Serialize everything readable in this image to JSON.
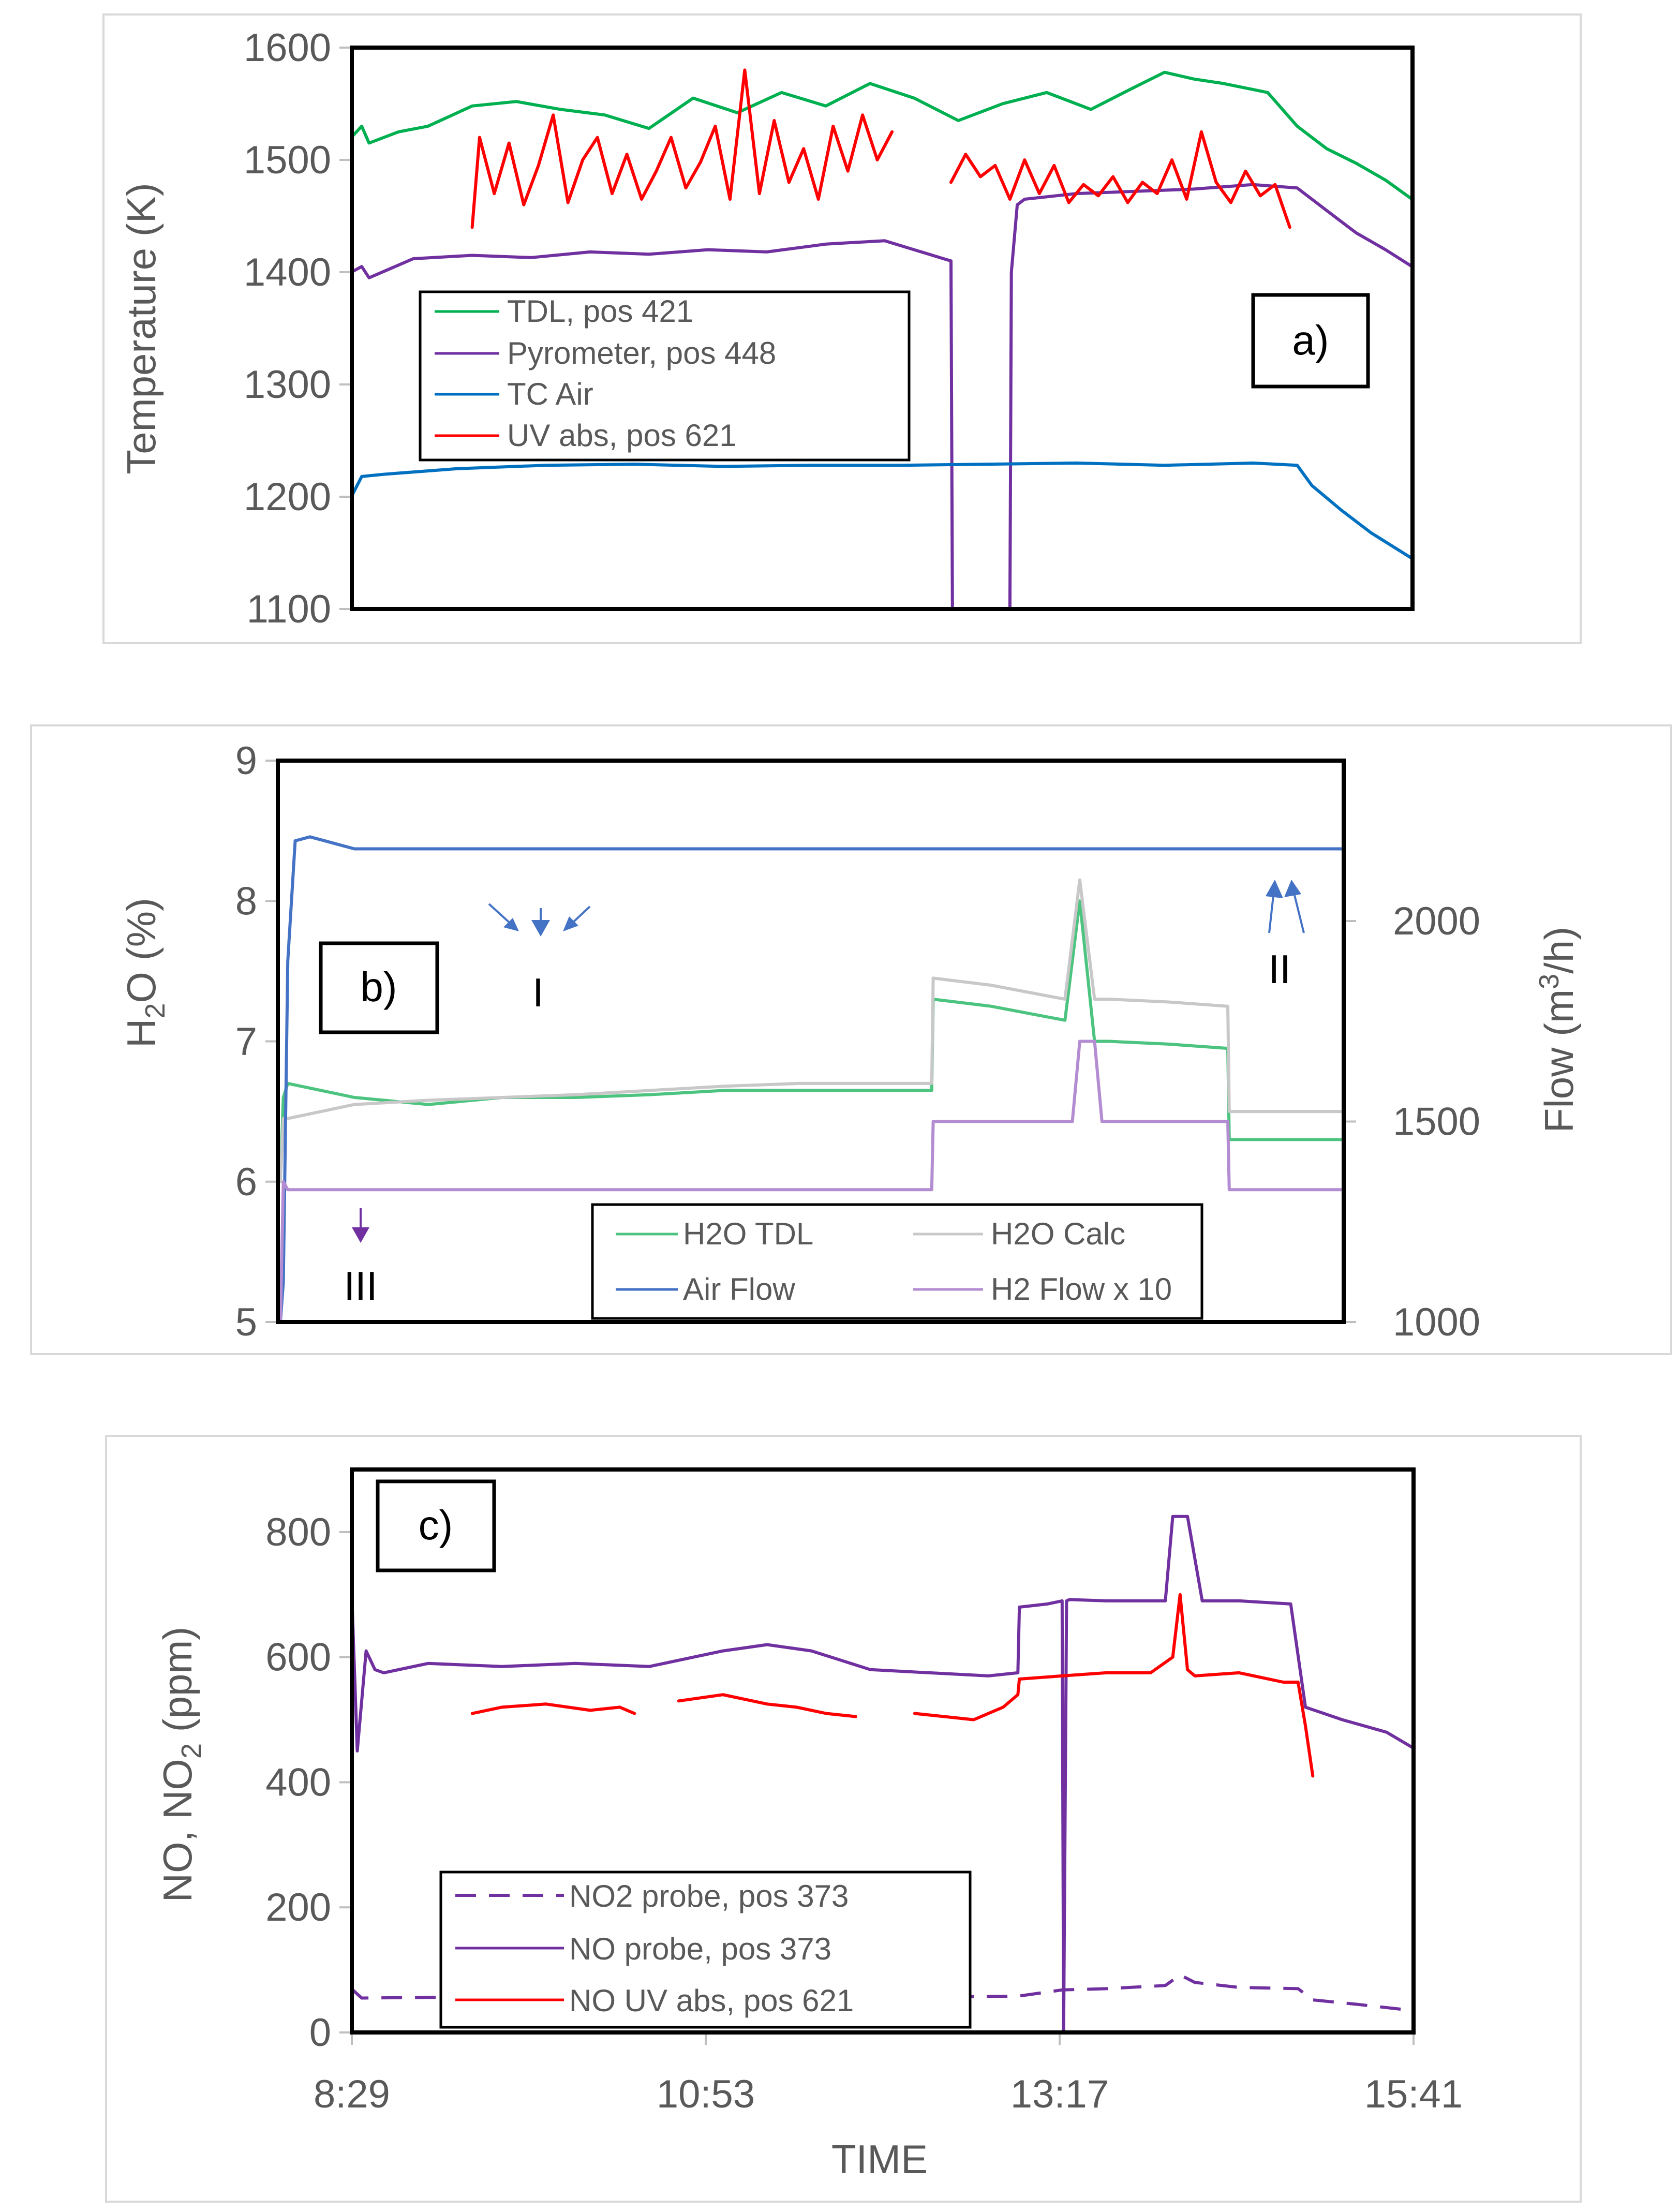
{
  "chart_data": [
    {
      "id": "a",
      "type": "line",
      "panel_label": "a)",
      "ylabel": "Temperature (K)",
      "ylim": [
        1100,
        1600
      ],
      "yticks": [
        "1600",
        "1500",
        "1400",
        "1300",
        "1200",
        "1100"
      ],
      "yticks_values": [
        1600,
        1500,
        1400,
        1300,
        1200,
        1100
      ],
      "x_range_hours": [
        8.483,
        15.683
      ],
      "legend": [
        "TDL, pos 421",
        "Pyrometer, pos 448",
        "TC Air",
        "UV abs, pos 621"
      ],
      "series": [
        {
          "name": "TDL, pos 421",
          "color": "#00b050",
          "x": [
            8.48,
            8.55,
            8.6,
            8.8,
            9.0,
            9.3,
            9.6,
            9.9,
            10.2,
            10.5,
            10.8,
            11.1,
            11.4,
            11.7,
            12.0,
            12.3,
            12.6,
            12.9,
            13.2,
            13.5,
            13.8,
            14.0,
            14.2,
            14.4,
            14.7,
            14.9,
            15.1,
            15.3,
            15.5,
            15.68
          ],
          "y": [
            1520,
            1530,
            1515,
            1525,
            1530,
            1548,
            1552,
            1545,
            1540,
            1528,
            1555,
            1542,
            1560,
            1548,
            1568,
            1555,
            1535,
            1550,
            1560,
            1545,
            1565,
            1578,
            1572,
            1568,
            1560,
            1530,
            1510,
            1497,
            1482,
            1465
          ]
        },
        {
          "name": "Pyrometer, pos 448",
          "color": "#7030a0",
          "x": [
            8.48,
            8.55,
            8.6,
            8.9,
            9.3,
            9.7,
            10.1,
            10.5,
            10.9,
            11.3,
            11.7,
            12.1,
            12.5,
            12.55,
            12.56,
            12.95,
            12.96,
            13.0,
            13.05,
            13.4,
            13.8,
            14.2,
            14.6,
            14.9,
            15.1,
            15.3,
            15.5,
            15.68
          ],
          "y": [
            1400,
            1405,
            1395,
            1412,
            1415,
            1413,
            1418,
            1416,
            1420,
            1418,
            1425,
            1428,
            1412,
            1410,
            1100,
            1100,
            1400,
            1460,
            1465,
            1470,
            1472,
            1474,
            1478,
            1475,
            1455,
            1435,
            1420,
            1405
          ]
        },
        {
          "name": "TC Air",
          "color": "#0070c0",
          "x": [
            8.48,
            8.55,
            8.7,
            9.2,
            9.8,
            10.4,
            11.0,
            11.6,
            12.2,
            12.8,
            13.4,
            14.0,
            14.6,
            14.9,
            15.0,
            15.2,
            15.4,
            15.68
          ],
          "y": [
            1200,
            1218,
            1220,
            1225,
            1228,
            1229,
            1227,
            1228,
            1228,
            1229,
            1230,
            1228,
            1230,
            1228,
            1210,
            1188,
            1168,
            1145
          ]
        },
        {
          "name": "UV abs, pos 621",
          "color": "#ff0000",
          "x": [
            9.3,
            9.35,
            9.45,
            9.55,
            9.65,
            9.75,
            9.85,
            9.95,
            10.05,
            10.15,
            10.25,
            10.35,
            10.45,
            10.55,
            10.65,
            10.75,
            10.85,
            10.95,
            11.05,
            11.15,
            11.25,
            11.35,
            11.45,
            11.55,
            11.65,
            11.75,
            11.85,
            11.95,
            12.05,
            12.15,
            12.25,
            12.35,
            12.45,
            12.55,
            12.65,
            12.75,
            12.85,
            12.95,
            13.05,
            13.15,
            13.25,
            13.35,
            13.45,
            13.55,
            13.65,
            13.75,
            13.85,
            13.95,
            14.05,
            14.15,
            14.25,
            14.35,
            14.45,
            14.55,
            14.65,
            14.75,
            14.85
          ],
          "y": [
            1440,
            1520,
            1470,
            1515,
            1460,
            1495,
            1540,
            1462,
            1500,
            1520,
            1470,
            1505,
            1465,
            1490,
            1520,
            1475,
            1498,
            1530,
            1465,
            1580,
            1470,
            1535,
            1480,
            1510,
            1465,
            1530,
            1490,
            1540,
            1500,
            1525,
            null,
            null,
            null,
            1480,
            1505,
            1485,
            1495,
            1465,
            1500,
            1470,
            1495,
            1462,
            1478,
            1468,
            1485,
            1462,
            1480,
            1470,
            1500,
            1465,
            1525,
            1480,
            1462,
            1490,
            1468,
            1478,
            1440
          ]
        }
      ]
    },
    {
      "id": "b",
      "type": "line",
      "panel_label": "b)",
      "ylabel": "H2O (%)",
      "ylabel_main": "H",
      "ylabel_sub": "2",
      "ylabel_tail": "O (%)",
      "ylim": [
        5,
        9
      ],
      "yticks": [
        "9",
        "8",
        "7",
        "6",
        "5"
      ],
      "yticks_values": [
        9,
        8,
        7,
        6,
        5
      ],
      "y2label": "Flow (m3/h)",
      "y2label_main": "Flow (m",
      "y2label_sup": "3",
      "y2label_tail": "/h)",
      "y2lim": [
        1000,
        2400
      ],
      "y2ticks": [
        "2000",
        "1500",
        "1000"
      ],
      "y2ticks_values": [
        2000,
        1500,
        1000
      ],
      "x_range_hours": [
        8.483,
        15.683
      ],
      "annotations": [
        "I",
        "II",
        "III"
      ],
      "legend": [
        "H2O TDL",
        "H2O Calc",
        "Air Flow",
        "H2 Flow x 10"
      ],
      "series": [
        {
          "name": "H2O TDL",
          "axis": "left",
          "color": "#4cc47f",
          "x": [
            8.5,
            8.52,
            8.55,
            9.0,
            9.5,
            10.0,
            10.5,
            11.0,
            11.5,
            12.0,
            12.5,
            12.9,
            12.91,
            13.3,
            13.8,
            13.9,
            14.0,
            14.1,
            14.5,
            14.9,
            14.91,
            15.3,
            15.68
          ],
          "y": [
            6.0,
            6.6,
            6.7,
            6.6,
            6.55,
            6.6,
            6.6,
            6.62,
            6.65,
            6.65,
            6.65,
            6.65,
            7.3,
            7.25,
            7.15,
            8.0,
            7.0,
            7.0,
            6.98,
            6.95,
            6.3,
            6.3,
            6.3
          ]
        },
        {
          "name": "H2O Calc",
          "axis": "left",
          "color": "#c8c8c8",
          "x": [
            8.5,
            8.52,
            8.55,
            9.0,
            9.5,
            10.0,
            10.5,
            11.0,
            11.5,
            12.0,
            12.5,
            12.9,
            12.91,
            13.3,
            13.8,
            13.9,
            14.0,
            14.1,
            14.5,
            14.9,
            14.91,
            15.3,
            15.68
          ],
          "y": [
            6.0,
            6.45,
            6.45,
            6.55,
            6.58,
            6.6,
            6.62,
            6.65,
            6.68,
            6.7,
            6.7,
            6.7,
            7.45,
            7.4,
            7.3,
            8.15,
            7.3,
            7.3,
            7.28,
            7.25,
            6.5,
            6.5,
            6.5
          ]
        },
        {
          "name": "Air Flow",
          "axis": "right",
          "color": "#4472c4",
          "x": [
            8.5,
            8.52,
            8.55,
            8.6,
            8.7,
            9.0,
            9.5,
            10.0,
            10.5,
            11.0,
            11.5,
            12.0,
            12.5,
            13.0,
            13.5,
            14.0,
            14.5,
            15.0,
            15.5,
            15.68
          ],
          "y": [
            1000,
            1100,
            1900,
            2200,
            2210,
            2180,
            2180,
            2180,
            2180,
            2180,
            2180,
            2180,
            2180,
            2180,
            2180,
            2180,
            2180,
            2180,
            2180,
            2180
          ]
        },
        {
          "name": "H2 Flow x 10",
          "axis": "right",
          "color": "#b48cd2",
          "x": [
            8.5,
            8.52,
            8.55,
            9.0,
            10.0,
            11.0,
            12.0,
            12.9,
            12.91,
            13.5,
            13.85,
            13.9,
            14.0,
            14.05,
            14.5,
            14.9,
            14.91,
            15.3,
            15.68
          ],
          "y": [
            1000,
            1350,
            1330,
            1330,
            1330,
            1330,
            1330,
            1330,
            1500,
            1500,
            1500,
            1700,
            1700,
            1500,
            1500,
            1500,
            1330,
            1330,
            1330
          ]
        }
      ]
    },
    {
      "id": "c",
      "type": "line",
      "panel_label": "c)",
      "ylabel": "NO, NO2 (ppm)",
      "ylabel_main": "NO, NO",
      "ylabel_sub": "2",
      "ylabel_tail": " (ppm)",
      "xlabel": "TIME",
      "ylim": [
        0,
        900
      ],
      "yticks": [
        "800",
        "600",
        "400",
        "200",
        "0"
      ],
      "yticks_values": [
        800,
        600,
        400,
        200,
        0
      ],
      "xticks": [
        "8:29",
        "10:53",
        "13:17",
        "15:41"
      ],
      "xticks_hours": [
        8.483,
        10.883,
        13.283,
        15.683
      ],
      "x_range_hours": [
        8.483,
        15.683
      ],
      "legend": [
        "NO2 probe, pos 373",
        "NO probe, pos 373",
        "NO UV abs, pos 621"
      ],
      "series": [
        {
          "name": "NO2 probe, pos 373",
          "color": "#7030a0",
          "dashed": true,
          "x": [
            8.48,
            8.55,
            9.0,
            9.5,
            10.0,
            10.5,
            11.0,
            11.5,
            12.0,
            12.5,
            13.0,
            13.3,
            13.6,
            14.0,
            14.1,
            14.2,
            14.5,
            14.9,
            15.0,
            15.3,
            15.68
          ],
          "y": [
            70,
            55,
            56,
            57,
            56,
            57,
            58,
            60,
            58,
            57,
            58,
            68,
            70,
            75,
            92,
            80,
            72,
            70,
            52,
            45,
            35
          ]
        },
        {
          "name": "NO probe, pos 373",
          "color": "#7030a0",
          "x": [
            8.48,
            8.52,
            8.58,
            8.64,
            8.7,
            9.0,
            9.5,
            10.0,
            10.5,
            11.0,
            11.3,
            11.6,
            11.8,
            12.0,
            12.4,
            12.8,
            13.0,
            13.01,
            13.2,
            13.3,
            13.31,
            13.33,
            13.35,
            13.6,
            14.0,
            14.05,
            14.15,
            14.25,
            14.5,
            14.85,
            14.95,
            15.2,
            15.5,
            15.68
          ],
          "y": [
            720,
            450,
            610,
            580,
            575,
            590,
            585,
            590,
            585,
            610,
            620,
            610,
            595,
            580,
            575,
            570,
            575,
            680,
            685,
            690,
            0,
            690,
            692,
            690,
            690,
            825,
            825,
            690,
            690,
            685,
            520,
            500,
            480,
            455
          ]
        },
        {
          "name": "NO UV abs, pos 621",
          "color": "#ff0000",
          "x": [
            9.3,
            9.5,
            9.8,
            10.1,
            10.3,
            10.4,
            10.5,
            10.7,
            11.0,
            11.3,
            11.5,
            11.7,
            11.9,
            12.0,
            12.2,
            12.3,
            12.5,
            12.7,
            12.9,
            13.0,
            13.01,
            13.3,
            13.6,
            13.9,
            14.05,
            14.1,
            14.15,
            14.2,
            14.5,
            14.8,
            14.9,
            14.95,
            15.0
          ],
          "y": [
            510,
            520,
            525,
            515,
            520,
            510,
            null,
            530,
            540,
            525,
            520,
            510,
            505,
            null,
            null,
            510,
            505,
            500,
            520,
            540,
            565,
            570,
            575,
            575,
            600,
            700,
            580,
            570,
            575,
            560,
            560,
            490,
            410
          ]
        }
      ]
    }
  ]
}
